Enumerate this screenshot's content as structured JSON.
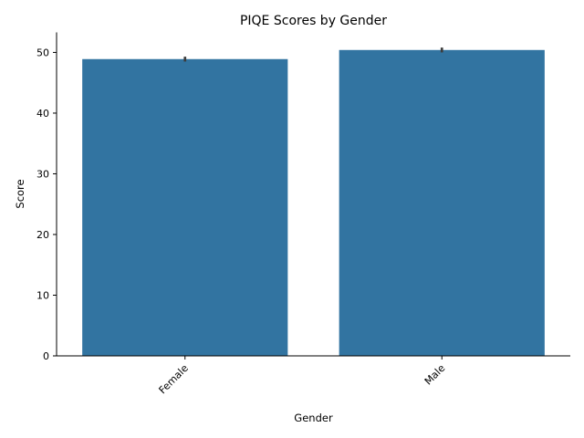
{
  "chart_data": {
    "type": "bar",
    "title": "PIQE Scores by Gender",
    "xlabel": "Gender",
    "ylabel": "Score",
    "categories": [
      "Female",
      "Male"
    ],
    "values": [
      48.9,
      50.4
    ],
    "error_bars": [
      {
        "low": 48.5,
        "high": 49.3
      },
      {
        "low": 50.0,
        "high": 50.8
      }
    ],
    "ylim": [
      0,
      53.3
    ],
    "yticks": [
      0,
      10,
      20,
      30,
      40,
      50
    ],
    "grid": false,
    "legend": "none",
    "bar_color": "#3274a1",
    "error_color": "#3d3d3d"
  }
}
